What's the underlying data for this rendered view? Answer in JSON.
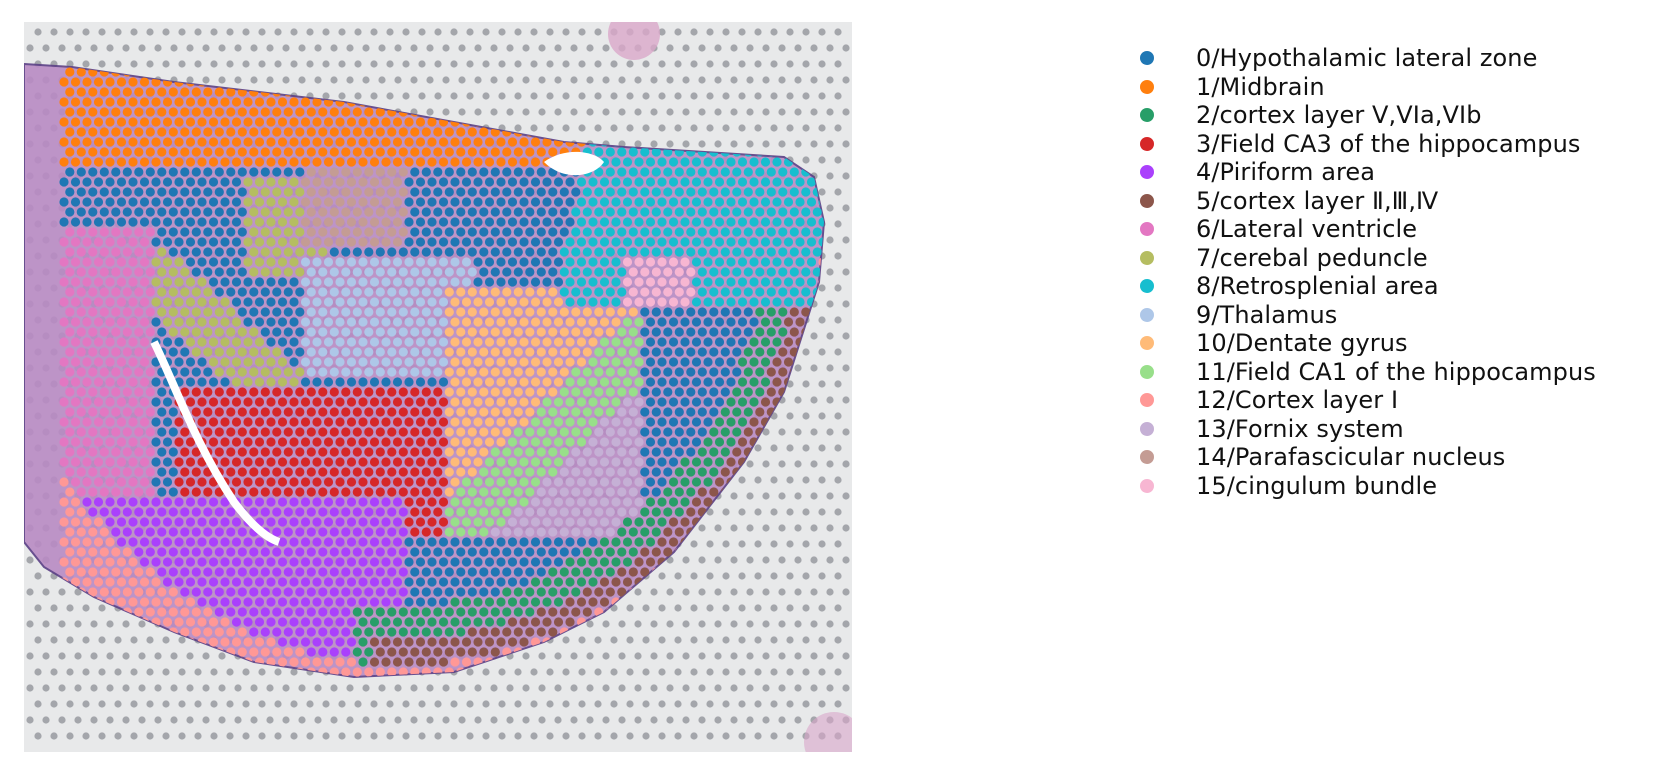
{
  "chart_data": {
    "type": "scatter",
    "background": "tissue-section-image",
    "legend_position": "right",
    "grid": false,
    "axes_visible": false,
    "series": [
      {
        "name": "0/Hypothalamic lateral zone",
        "color": "#1f77b4"
      },
      {
        "name": "1/Midbrain",
        "color": "#ff7f0e"
      },
      {
        "name": "2/cortex layer V,VIa,VIb",
        "color": "#279e68"
      },
      {
        "name": "3/Field CA3 of the hippocampus",
        "color": "#d62728"
      },
      {
        "name": "4/Piriform area",
        "color": "#aa40fc"
      },
      {
        "name": "5/cortex layer Ⅱ,Ⅲ,Ⅳ",
        "color": "#8c564b"
      },
      {
        "name": "6/Lateral ventricle",
        "color": "#e377c2"
      },
      {
        "name": "7/cerebal peduncle",
        "color": "#b5bd61"
      },
      {
        "name": "8/Retrosplenial area",
        "color": "#17becf"
      },
      {
        "name": "9/Thalamus",
        "color": "#aec7e8"
      },
      {
        "name": "10/Dentate gyrus",
        "color": "#ffbb78"
      },
      {
        "name": "11/Field CA1 of the hippocampus",
        "color": "#98df8a"
      },
      {
        "name": "12/Cortex layer I",
        "color": "#ff9896"
      },
      {
        "name": "13/Fornix system",
        "color": "#c5b0d5"
      },
      {
        "name": "14/Parafascicular nucleus",
        "color": "#c49c94"
      },
      {
        "name": "15/cingulum bundle",
        "color": "#f7b6d2"
      }
    ]
  }
}
